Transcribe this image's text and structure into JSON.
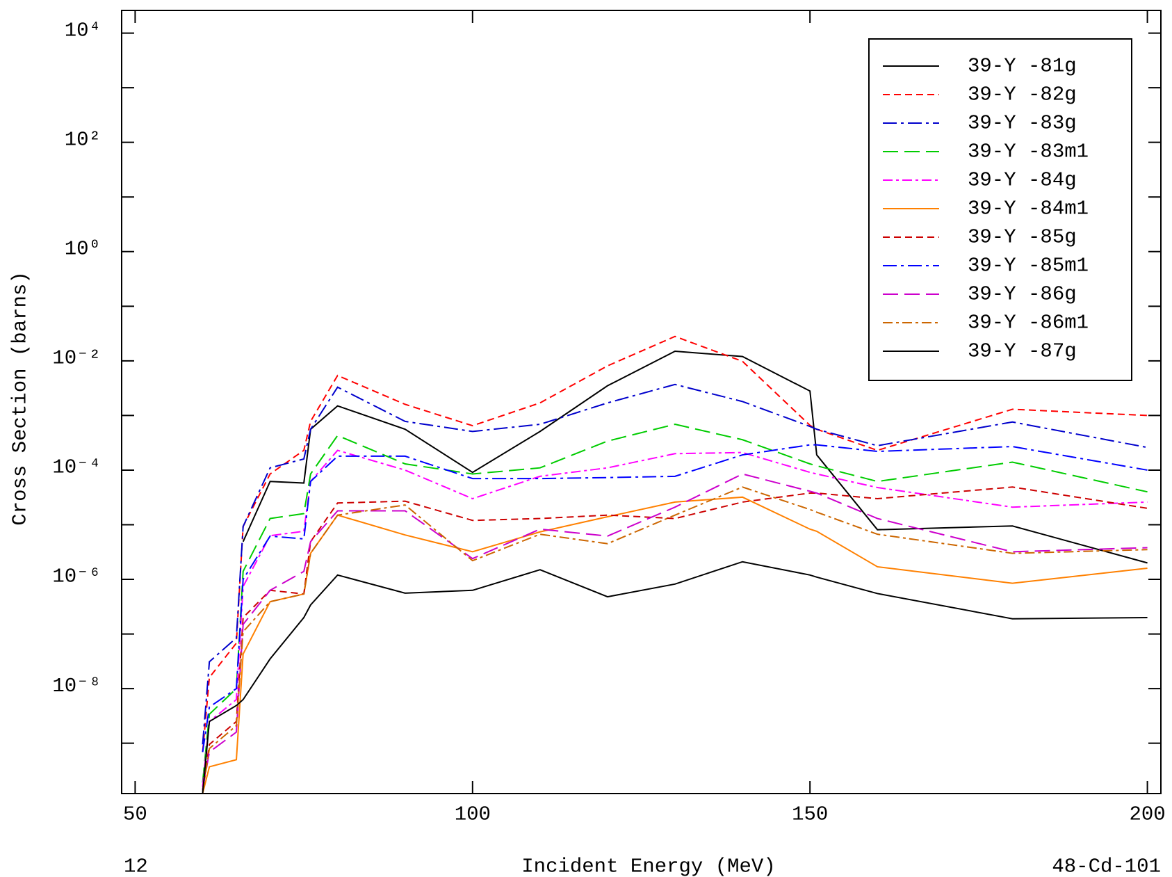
{
  "chart_data": {
    "type": "line",
    "y_label": "Cross Section (barns)",
    "x_label": "Incident Energy (MeV)",
    "left_note": "12",
    "right_note": "48-Cd-101",
    "xlim": [
      48,
      202
    ],
    "xticks": [
      50,
      100,
      150,
      200
    ],
    "ylim": [
      1.2e-10,
      26000
    ],
    "yscale": "log",
    "yticks": [
      {
        "value": 1e-08,
        "label": "10⁻⁸"
      },
      {
        "value": 1e-06,
        "label": "10⁻⁶"
      },
      {
        "value": 0.0001,
        "label": "10⁻⁴"
      },
      {
        "value": 0.01,
        "label": "10⁻²"
      },
      {
        "value": 1,
        "label": "10⁰"
      },
      {
        "value": 100,
        "label": "10²"
      },
      {
        "value": 10000,
        "label": "10⁴"
      }
    ],
    "yminorticks": [
      1e-09,
      1e-07,
      1e-05,
      0.001,
      0.1,
      10,
      1000
    ],
    "legend": "top-right",
    "x": [
      60,
      61,
      65,
      66,
      70,
      75,
      76,
      80,
      90,
      100,
      110,
      120,
      130,
      140,
      150,
      151,
      160,
      180,
      200
    ],
    "series": [
      {
        "name": "39-Y -81g",
        "color": "#000000",
        "dash": "solid",
        "values": [
          null,
          null,
          null,
          4.9e-06,
          6.2e-05,
          5.8e-05,
          0.00056,
          0.0015,
          0.00056,
          9.1e-05,
          0.00051,
          0.0035,
          0.015,
          0.012,
          0.0028,
          0.00019,
          8.1e-06,
          9.5e-06,
          2e-06
        ]
      },
      {
        "name": "39-Y -82g",
        "color": "#ff0000",
        "dash": "dashed",
        "values": [
          6.9e-10,
          1.6e-08,
          6.8e-08,
          9.3e-06,
          8.5e-05,
          0.00023,
          0.00078,
          0.0054,
          0.0016,
          0.00065,
          0.0017,
          0.0081,
          0.028,
          0.0098,
          0.00066,
          0.00056,
          0.00023,
          0.0013,
          0.001
        ]
      },
      {
        "name": "39-Y -83g",
        "color": "#0000cc",
        "dash": "dashdot",
        "values": [
          9.5e-10,
          3.1e-08,
          8.5e-08,
          9.3e-06,
          0.00011,
          0.00016,
          0.00056,
          0.0033,
          0.00078,
          0.00051,
          0.00069,
          0.0017,
          0.0037,
          0.0018,
          0.00063,
          0.00056,
          0.00028,
          0.00076,
          0.00026
        ]
      },
      {
        "name": "39-Y -83m1",
        "color": "#00cc00",
        "dash": "longdash",
        "values": [
          1.9e-10,
          3.4e-09,
          1e-08,
          1.4e-06,
          1.3e-05,
          1.6e-05,
          8.5e-05,
          0.00043,
          0.00013,
          8.5e-05,
          0.00011,
          0.00034,
          0.00069,
          0.00036,
          0.00013,
          0.00012,
          6.2e-05,
          0.00014,
          4e-05
        ]
      },
      {
        "name": "39-Y -84g",
        "color": "#ff00ff",
        "dash": "dashdot2",
        "values": [
          1.6e-10,
          2.5e-09,
          6.3e-09,
          7.4e-07,
          6.3e-06,
          7.6e-06,
          6.2e-05,
          0.00023,
          0.0001,
          3e-05,
          7.7e-05,
          0.00011,
          0.0002,
          0.00021,
          9.1e-05,
          8.5e-05,
          4.8e-05,
          2.1e-05,
          2.6e-05
        ]
      },
      {
        "name": "39-Y -84m1",
        "color": "#ff8000",
        "dash": "solid",
        "values": [
          1.2e-10,
          3.7e-10,
          5e-10,
          4.3e-08,
          3.9e-07,
          5.4e-07,
          3e-06,
          1.5e-05,
          6.5e-06,
          3.2e-06,
          7.4e-06,
          1.4e-05,
          2.6e-05,
          3.2e-05,
          8.3e-06,
          7.6e-06,
          1.7e-06,
          8.5e-07,
          1.6e-06
        ]
      },
      {
        "name": "39-Y -85g",
        "color": "#cc0000",
        "dash": "dashed",
        "values": [
          1.4e-10,
          9.5e-10,
          2.5e-09,
          2e-07,
          6.3e-07,
          5.4e-07,
          4.9e-06,
          2.5e-05,
          2.7e-05,
          1.2e-05,
          1.3e-05,
          1.5e-05,
          1.3e-05,
          2.6e-05,
          3.8e-05,
          3.8e-05,
          3e-05,
          4.9e-05,
          2e-05
        ]
      },
      {
        "name": "39-Y -85m1",
        "color": "#0000ff",
        "dash": "dashdot",
        "values": [
          6.9e-10,
          4.6e-09,
          1e-08,
          1e-06,
          6.2e-06,
          5.5e-06,
          6.2e-05,
          0.00018,
          0.00018,
          7e-05,
          7e-05,
          7.3e-05,
          7.7e-05,
          0.00019,
          0.00029,
          0.00029,
          0.00022,
          0.00027,
          0.0001
        ]
      },
      {
        "name": "39-Y -86g",
        "color": "#cc00cc",
        "dash": "longdash",
        "values": [
          1.4e-10,
          6.9e-10,
          1.6e-09,
          1.5e-07,
          6.3e-07,
          1.4e-06,
          4.9e-06,
          1.8e-05,
          1.8e-05,
          2.4e-06,
          8.3e-06,
          6.2e-06,
          2.1e-05,
          8.5e-05,
          4.1e-05,
          3.8e-05,
          1.3e-05,
          3.2e-06,
          3.8e-06
        ]
      },
      {
        "name": "39-Y -86m1",
        "color": "#cc6600",
        "dash": "dashdot2",
        "values": [
          1.3e-10,
          8e-10,
          2.1e-09,
          1.1e-07,
          3.9e-07,
          5.4e-07,
          3e-06,
          1.5e-05,
          2.3e-05,
          2.2e-06,
          6.7e-06,
          4.5e-06,
          1.5e-05,
          4.9e-05,
          1.9e-05,
          1.7e-05,
          6.7e-06,
          3e-06,
          3.5e-06
        ]
      },
      {
        "name": "39-Y -87g",
        "color": "#000000",
        "dash": "solid",
        "values": [
          1.2e-10,
          2.5e-09,
          4.9e-09,
          6.3e-09,
          3.5e-08,
          2e-07,
          3.4e-07,
          1.2e-06,
          5.6e-07,
          6.3e-07,
          1.5e-06,
          4.8e-07,
          8.2e-07,
          2.1e-06,
          1.2e-06,
          1.1e-06,
          5.5e-07,
          1.9e-07,
          2e-07
        ]
      }
    ]
  }
}
